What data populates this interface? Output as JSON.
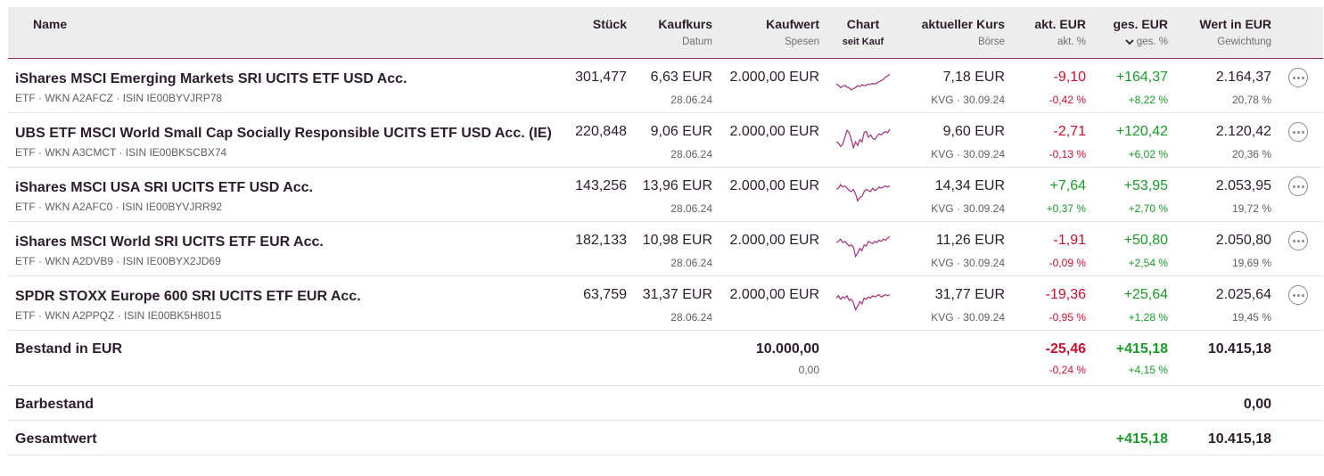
{
  "header": {
    "name": "Name",
    "stueck": "Stück",
    "kaufkurs": "Kaufkurs",
    "datum": "Datum",
    "kaufwert": "Kaufwert",
    "spesen": "Spesen",
    "chart": "Chart",
    "seit_kauf": "seit Kauf",
    "aktueller_kurs": "aktueller Kurs",
    "boerse": "Börse",
    "akt_eur": "akt. EUR",
    "akt_pct": "akt. %",
    "ges_eur": "ges. EUR",
    "ges_pct": "ges. %",
    "wert_eur": "Wert in EUR",
    "gewichtung": "Gewichtung",
    "sort_icon": "chevron-down-icon"
  },
  "rows": [
    {
      "name": "iShares MSCI Emerging Markets SRI UCITS ETF USD Acc.",
      "sub": "ETF · WKN A2AFCZ · ISIN IE00BYVJRP78",
      "stueck": "301,477",
      "kaufkurs": "6,63 EUR",
      "datum": "28.06.24",
      "kaufwert": "2.000,00 EUR",
      "aktueller_kurs": "7,18 EUR",
      "boerse": "KVG · 30.09.24",
      "akt_eur": "-9,10",
      "akt_pct": "-0,42 %",
      "ges_eur": "+164,37",
      "ges_pct": "+8,22 %",
      "wert": "2.164,37",
      "gewichtung": "20,78 %",
      "akt_sign": "neg",
      "ges_sign": "pos",
      "spark": [
        0.55,
        0.6,
        0.7,
        0.65,
        0.6,
        0.68,
        0.72,
        0.8,
        0.75,
        0.7,
        0.62,
        0.66,
        0.58,
        0.62,
        0.6,
        0.55,
        0.57,
        0.52,
        0.55,
        0.5,
        0.45,
        0.4,
        0.35,
        0.25,
        0.2,
        0.12
      ]
    },
    {
      "name": "UBS ETF MSCI World Small Cap Socially Responsible UCITS ETF USD Acc. (IE)",
      "sub": "ETF · WKN A3CMCT · ISIN IE00BKSCBX74",
      "stueck": "220,848",
      "kaufkurs": "9,06 EUR",
      "datum": "28.06.24",
      "kaufwert": "2.000,00 EUR",
      "aktueller_kurs": "9,60 EUR",
      "boerse": "KVG · 30.09.24",
      "akt_eur": "-2,71",
      "akt_pct": "-0,13 %",
      "ges_eur": "+120,42",
      "ges_pct": "+6,02 %",
      "wert": "2.120,42",
      "gewichtung": "20,36 %",
      "akt_sign": "neg",
      "ges_sign": "pos",
      "spark": [
        0.7,
        0.75,
        0.9,
        0.8,
        0.5,
        0.2,
        0.3,
        0.6,
        0.95,
        0.7,
        0.85,
        0.6,
        0.7,
        0.3,
        0.25,
        0.5,
        0.4,
        0.55,
        0.6,
        0.45,
        0.35,
        0.4,
        0.3,
        0.25,
        0.3,
        0.15
      ]
    },
    {
      "name": "iShares MSCI USA SRI UCITS ETF USD Acc.",
      "sub": "ETF · WKN A2AFC0 · ISIN IE00BYVJRR92",
      "stueck": "143,256",
      "kaufkurs": "13,96 EUR",
      "datum": "28.06.24",
      "kaufwert": "2.000,00 EUR",
      "aktueller_kurs": "14,34 EUR",
      "boerse": "KVG · 30.09.24",
      "akt_eur": "+7,64",
      "akt_pct": "+0,37 %",
      "ges_eur": "+53,95",
      "ges_pct": "+2,70 %",
      "wert": "2.053,95",
      "gewichtung": "19,72 %",
      "akt_sign": "pos",
      "ges_sign": "pos",
      "spark": [
        0.4,
        0.35,
        0.2,
        0.3,
        0.25,
        0.35,
        0.45,
        0.5,
        0.4,
        0.6,
        0.9,
        0.75,
        0.7,
        0.5,
        0.4,
        0.45,
        0.5,
        0.35,
        0.45,
        0.4,
        0.3,
        0.35,
        0.3,
        0.25,
        0.3,
        0.25
      ]
    },
    {
      "name": "iShares MSCI World SRI UCITS ETF EUR Acc.",
      "sub": "ETF · WKN A2DVB9 · ISIN IE00BYX2JD69",
      "stueck": "182,133",
      "kaufkurs": "10,98 EUR",
      "datum": "28.06.24",
      "kaufwert": "2.000,00 EUR",
      "aktueller_kurs": "11,26 EUR",
      "boerse": "KVG · 30.09.24",
      "akt_eur": "-1,91",
      "akt_pct": "-0,09 %",
      "ges_eur": "+50,80",
      "ges_pct": "+2,54 %",
      "wert": "2.050,80",
      "gewichtung": "19,69 %",
      "akt_sign": "neg",
      "ges_sign": "pos",
      "spark": [
        0.35,
        0.3,
        0.2,
        0.35,
        0.3,
        0.4,
        0.5,
        0.45,
        0.55,
        0.95,
        0.8,
        0.6,
        0.7,
        0.45,
        0.5,
        0.3,
        0.35,
        0.4,
        0.3,
        0.35,
        0.25,
        0.3,
        0.2,
        0.25,
        0.15,
        0.1
      ]
    },
    {
      "name": "SPDR STOXX Europe 600 SRI UCITS ETF EUR Acc.",
      "sub": "ETF · WKN A2PPQZ · ISIN IE00BK5H8015",
      "stueck": "63,759",
      "kaufkurs": "31,37 EUR",
      "datum": "28.06.24",
      "kaufwert": "2.000,00 EUR",
      "aktueller_kurs": "31,77 EUR",
      "boerse": "KVG · 30.09.24",
      "akt_eur": "-19,36",
      "akt_pct": "-0,95 %",
      "ges_eur": "+25,64",
      "ges_pct": "+1,28 %",
      "wert": "2.025,64",
      "gewichtung": "19,45 %",
      "akt_sign": "neg",
      "ges_sign": "pos",
      "spark": [
        0.4,
        0.3,
        0.45,
        0.35,
        0.4,
        0.3,
        0.5,
        0.45,
        0.6,
        0.9,
        0.75,
        0.55,
        0.65,
        0.4,
        0.45,
        0.35,
        0.4,
        0.3,
        0.35,
        0.3,
        0.25,
        0.35,
        0.3,
        0.25,
        0.3,
        0.25
      ]
    }
  ],
  "bestand": {
    "label": "Bestand in EUR",
    "kaufwert": "10.000,00",
    "spesen": "0,00",
    "akt_eur": "-25,46",
    "akt_pct": "-0,24 %",
    "ges_eur": "+415,18",
    "ges_pct": "+4,15 %",
    "wert": "10.415,18"
  },
  "barbestand": {
    "label": "Barbestand",
    "wert": "0,00"
  },
  "gesamtwert": {
    "label": "Gesamtwert",
    "ges_eur": "+415,18",
    "wert": "10.415,18"
  },
  "colors": {
    "accent": "#8a2f6e",
    "negative": "#c8102e",
    "positive": "#1a9a2a",
    "spark": "#a0307a"
  },
  "more_icon": "more-horizontal-icon"
}
